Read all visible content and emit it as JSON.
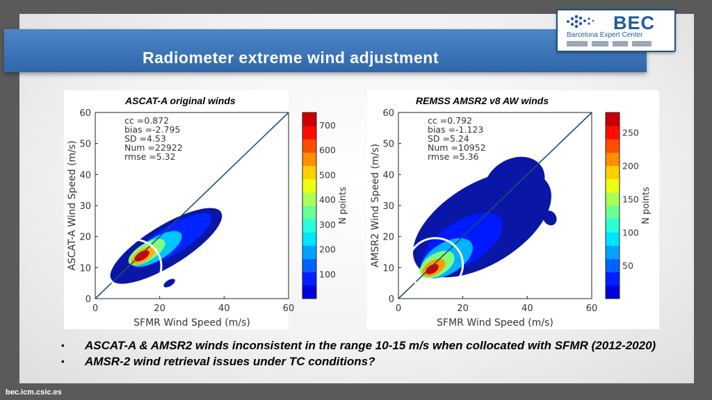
{
  "slide": {
    "title": "Radiometer extreme wind adjustment",
    "logo": {
      "main": "BEC",
      "subtitle": "Barcelona Expert Center"
    },
    "footer": "bec.icm.csic.es",
    "bullets": [
      "ASCAT-A & AMSR2 winds inconsistent in the range 10-15 m/s when collocated with SFMR (2012-2020)",
      "AMSR-2 wind retrieval issues under TC conditions?"
    ],
    "bullet_marker": "•"
  },
  "chart_data": [
    {
      "type": "heatmap",
      "title": "ASCAT-A original winds",
      "xlabel": "SFMR Wind Speed (m/s)",
      "ylabel": "ASCAT-A Wind Speed (m/s)",
      "xlim": [
        0,
        60
      ],
      "ylim": [
        0,
        60
      ],
      "xticks": [
        0,
        20,
        40,
        60
      ],
      "yticks": [
        0,
        10,
        20,
        30,
        40,
        50,
        60
      ],
      "stats": [
        "cc   =0.872",
        "bias  =-2.795",
        "SD    =4.53",
        "Num    =22922",
        "rmse  =5.32"
      ],
      "colorbar": {
        "label": "N points",
        "ticks": [
          100,
          200,
          300,
          400,
          500,
          600,
          700
        ],
        "max": 750
      },
      "highlight_circle": {
        "x": 12,
        "y": 10.5,
        "radius": 8.5
      },
      "density_blobs": [
        {
          "x": 22,
          "y": 17,
          "rx": 20,
          "ry": 6.5,
          "level": 0.05
        },
        {
          "x": 24,
          "y": 19,
          "rx": 14,
          "ry": 4.5,
          "level": 0.16
        },
        {
          "x": 19,
          "y": 16,
          "rx": 9,
          "ry": 3.6,
          "level": 0.32
        },
        {
          "x": 16,
          "y": 15,
          "rx": 6.5,
          "ry": 2.8,
          "level": 0.5
        },
        {
          "x": 15,
          "y": 14,
          "rx": 4.5,
          "ry": 2,
          "level": 0.7
        },
        {
          "x": 14.5,
          "y": 13.8,
          "rx": 2.6,
          "ry": 1.3,
          "level": 0.92
        },
        {
          "x": 23,
          "y": 5,
          "rx": 2,
          "ry": 1,
          "level": 0.05
        }
      ]
    },
    {
      "type": "heatmap",
      "title": "REMSS AMSR2 v8 AW winds",
      "xlabel": "SFMR Wind Speed (m/s)",
      "ylabel": "AMSR2 Wind Speed (m/s)",
      "xlim": [
        0,
        60
      ],
      "ylim": [
        0,
        60
      ],
      "xticks": [
        0,
        20,
        40,
        60
      ],
      "yticks": [
        0,
        10,
        20,
        30,
        40,
        50,
        60
      ],
      "stats": [
        "cc    =0.792",
        "bias  =-1.123",
        "SD    =5.24",
        "Num   =10952",
        "rmse  =5.36"
      ],
      "colorbar": {
        "label": "N points",
        "ticks": [
          50,
          100,
          150,
          200,
          250
        ],
        "max": 280
      },
      "highlight_circle": {
        "x": 11.5,
        "y": 11,
        "radius": 8.5
      },
      "density_blobs": [
        {
          "x": 26,
          "y": 24,
          "rx": 24,
          "ry": 13,
          "level": 0.05
        },
        {
          "x": 36,
          "y": 37,
          "rx": 10,
          "ry": 8,
          "level": 0.05
        },
        {
          "x": 20,
          "y": 18,
          "rx": 14,
          "ry": 7,
          "level": 0.15
        },
        {
          "x": 15,
          "y": 13,
          "rx": 9,
          "ry": 5,
          "level": 0.3
        },
        {
          "x": 12,
          "y": 11,
          "rx": 6,
          "ry": 3.5,
          "level": 0.5
        },
        {
          "x": 11,
          "y": 10,
          "rx": 4,
          "ry": 2.3,
          "level": 0.72
        },
        {
          "x": 10.5,
          "y": 9.5,
          "rx": 2.2,
          "ry": 1.3,
          "level": 0.93
        },
        {
          "x": 47,
          "y": 26,
          "rx": 2,
          "ry": 2.5,
          "level": 0.05
        }
      ]
    }
  ]
}
